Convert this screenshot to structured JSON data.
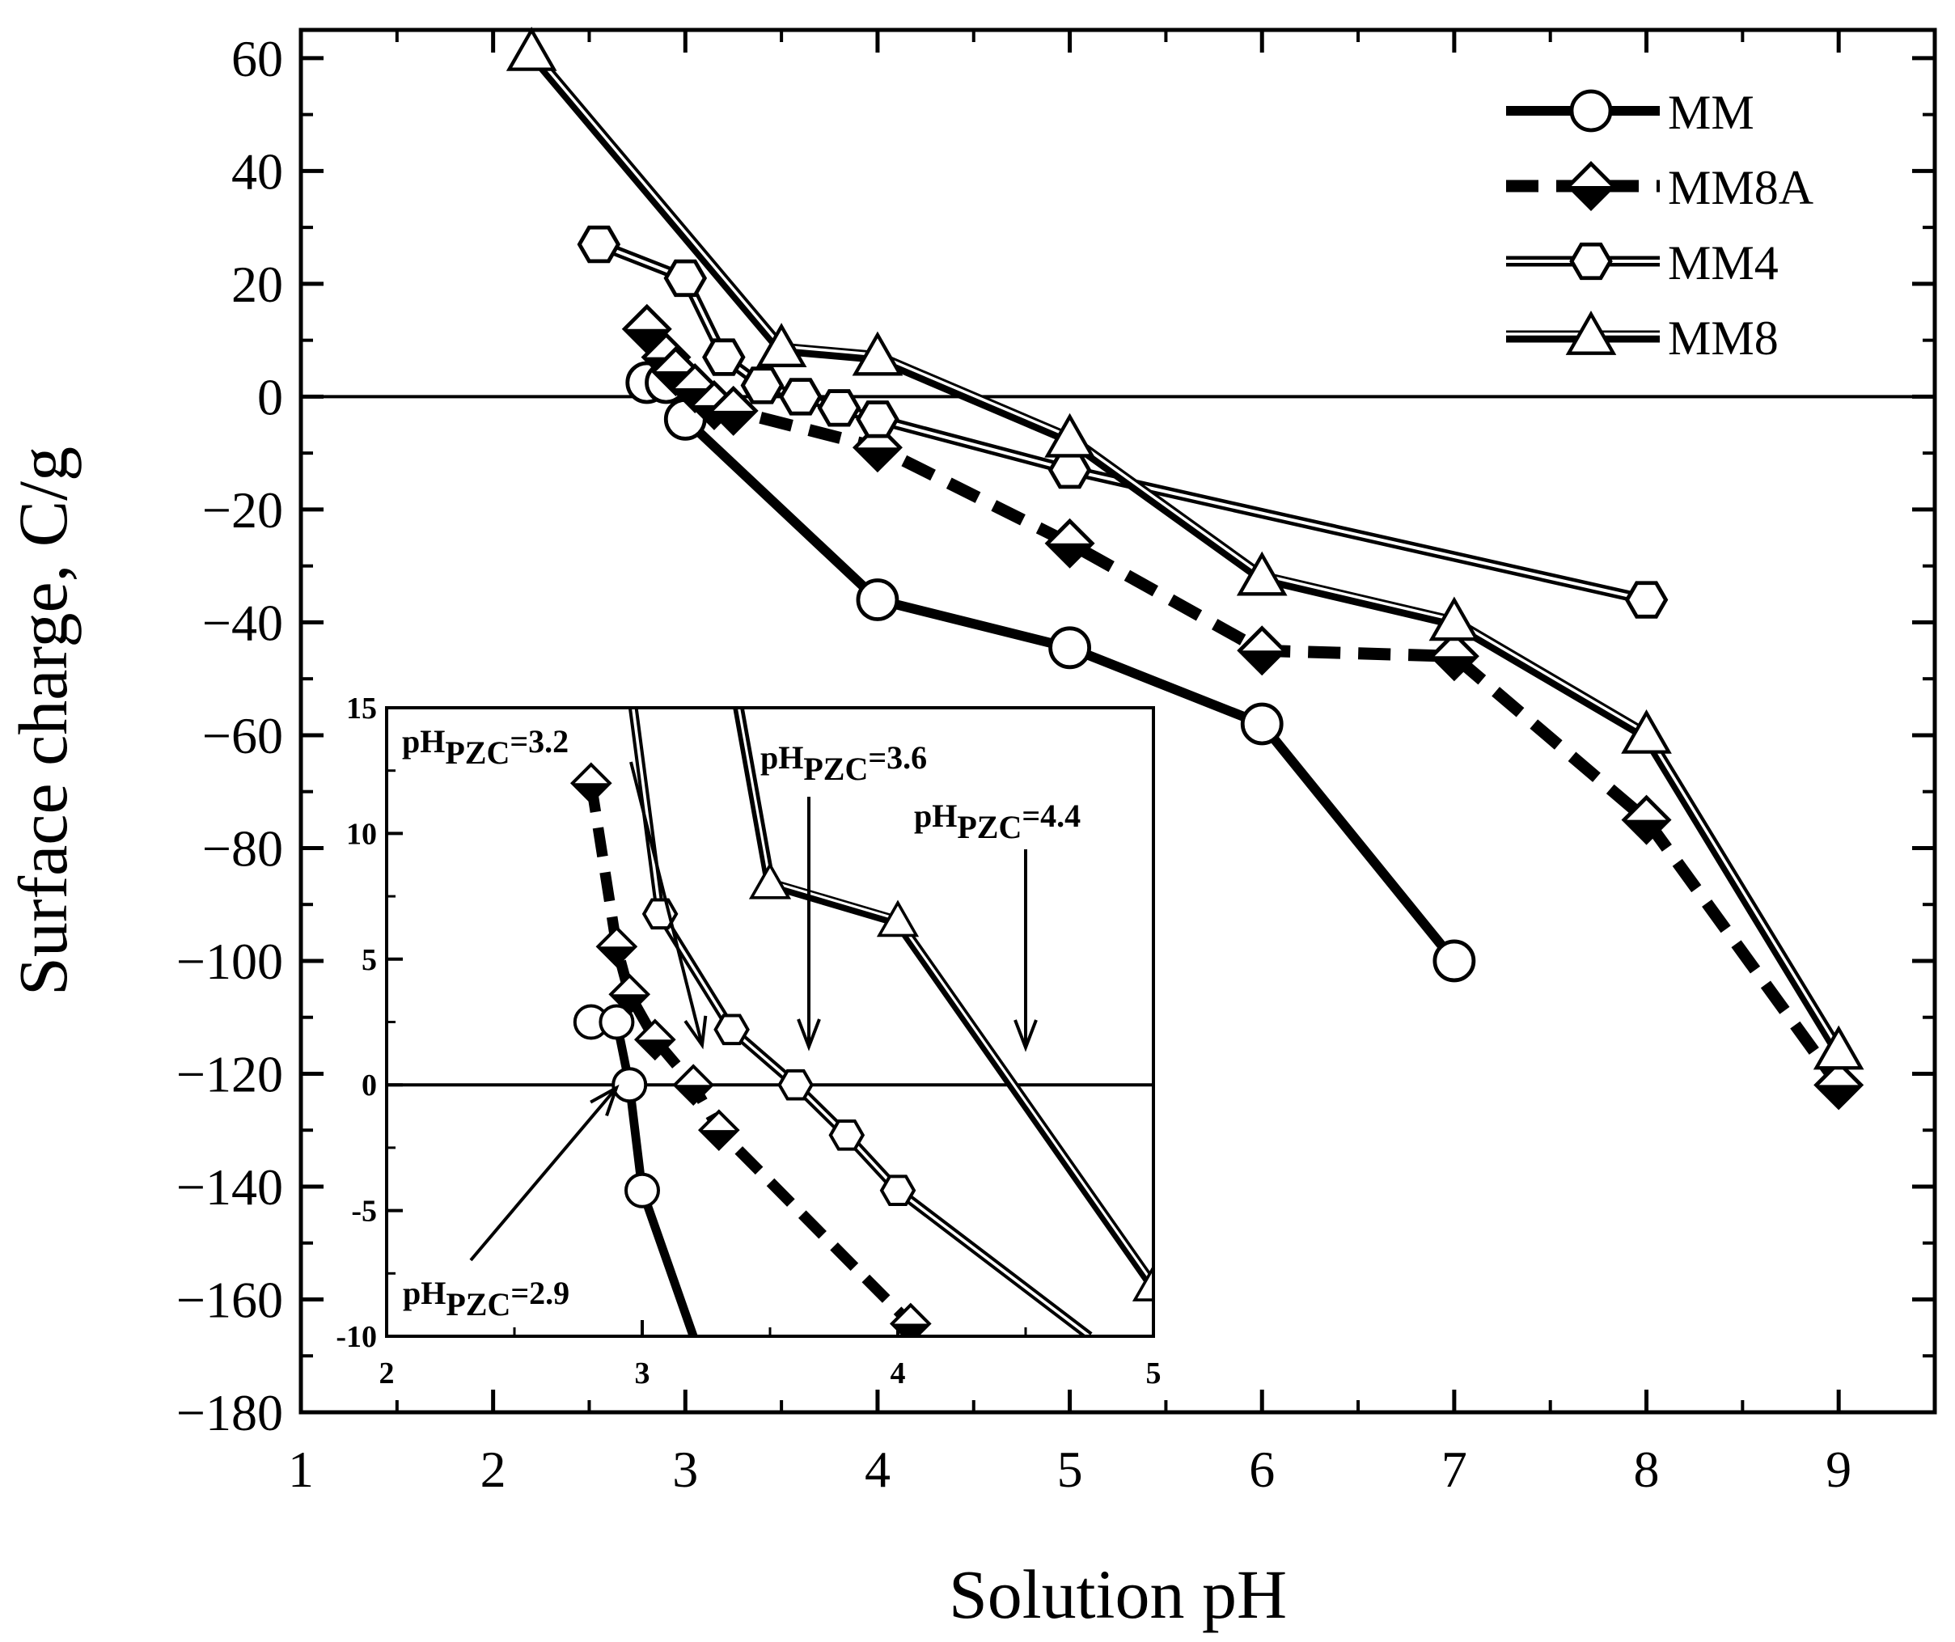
{
  "chart_data": {
    "type": "line",
    "title": "",
    "xlabel": "Solution pH",
    "ylabel": "Surface charge, C/g",
    "xlim": [
      1,
      9.5
    ],
    "ylim": [
      -180,
      65
    ],
    "x_ticks": [
      "1",
      "2",
      "3",
      "4",
      "5",
      "6",
      "7",
      "8",
      "9"
    ],
    "y_ticks": [
      "60",
      "40",
      "20",
      "0",
      "−20",
      "−40",
      "−60",
      "−80",
      "−100",
      "−120",
      "−140",
      "−160",
      "−180"
    ],
    "series": [
      {
        "name": "MM",
        "marker": "circle",
        "line": "thick-solid",
        "x": [
          2.8,
          2.9,
          3.0,
          4.0,
          5.0,
          6.0,
          7.0
        ],
        "y": [
          2.5,
          2.5,
          -4.0,
          -36.0,
          -44.5,
          -58.0,
          -100.0
        ]
      },
      {
        "name": "MM8A",
        "marker": "diamond",
        "line": "thick-dashed",
        "x": [
          2.8,
          2.9,
          2.95,
          3.05,
          3.15,
          3.25,
          4.0,
          5.0,
          6.0,
          7.0,
          8.0,
          9.0
        ],
        "y": [
          12.0,
          7.0,
          4.5,
          1.5,
          -1.5,
          -2.5,
          -9.0,
          -26.0,
          -45.0,
          -46.0,
          -75.0,
          -122.0
        ]
      },
      {
        "name": "MM4",
        "marker": "hexagon",
        "line": "double",
        "x": [
          2.55,
          3.0,
          3.2,
          3.4,
          3.6,
          3.8,
          4.0,
          5.0,
          8.0
        ],
        "y": [
          27.0,
          21.0,
          7.0,
          2.0,
          0.0,
          -2.0,
          -4.0,
          -13.0,
          -36.0
        ]
      },
      {
        "name": "MM8",
        "marker": "triangle",
        "line": "double-thick",
        "x": [
          2.2,
          3.5,
          4.0,
          5.0,
          6.0,
          7.0,
          8.0,
          9.0
        ],
        "y": [
          61.0,
          8.5,
          7.0,
          -7.5,
          -32.0,
          -40.0,
          -60.0,
          -116.0
        ]
      }
    ],
    "legend": {
      "placement": "top-right",
      "entries": [
        "MM",
        "MM8A",
        "MM4",
        "MM8"
      ]
    },
    "inset": {
      "placement": "bottom-left",
      "xlim": [
        2,
        5
      ],
      "ylim": [
        -10,
        15
      ],
      "x_ticks": [
        "2",
        "3",
        "4",
        "5"
      ],
      "y_ticks": [
        "15",
        "10",
        "5",
        "0",
        "-5",
        "-10"
      ],
      "series": [
        {
          "name": "MM",
          "x": [
            2.8,
            2.9,
            2.95,
            3.0,
            3.2
          ],
          "y": [
            2.5,
            2.5,
            0.0,
            -4.2,
            -10.0
          ]
        },
        {
          "name": "MM8A",
          "x": [
            2.8,
            2.9,
            2.95,
            3.05,
            3.2,
            3.3,
            4.05
          ],
          "y": [
            12.0,
            5.5,
            3.6,
            1.8,
            0.0,
            -1.8,
            -9.5
          ]
        },
        {
          "name": "MM4",
          "x": [
            3.07,
            3.35,
            3.6,
            3.8,
            4.0,
            4.75
          ],
          "y": [
            6.8,
            2.2,
            0.0,
            -2.0,
            -4.2,
            -10.0
          ]
        },
        {
          "name": "MM8",
          "x": [
            3.5,
            4.0,
            5.0
          ],
          "y": [
            8.0,
            6.5,
            -8.0
          ]
        }
      ],
      "annotations": [
        {
          "base": "pH",
          "sub": "PZC",
          "value": "=3.2"
        },
        {
          "base": "pH",
          "sub": "PZC",
          "value": "=3.6"
        },
        {
          "base": "pH",
          "sub": "PZC",
          "value": "=4.4"
        },
        {
          "base": "pH",
          "sub": "PZC",
          "value": "=2.9"
        }
      ]
    }
  }
}
